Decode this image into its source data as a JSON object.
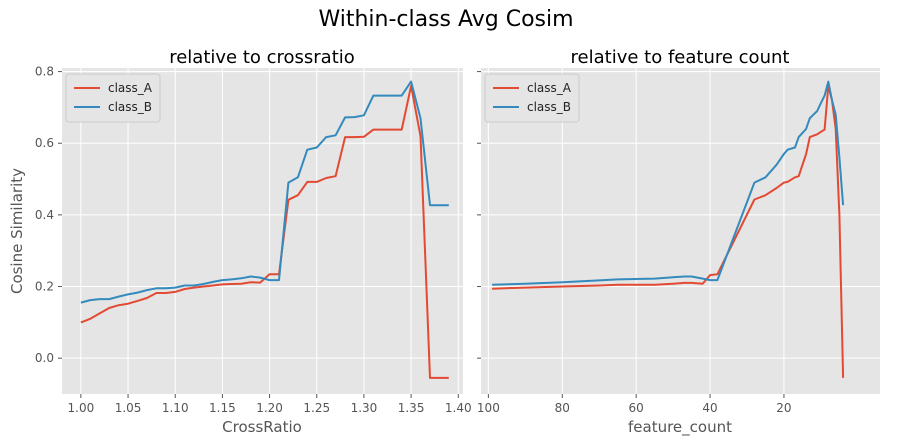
{
  "title": "Within-class Avg Cosim",
  "colors": {
    "class_A": "#E24A33",
    "class_B": "#348ABD",
    "panel_bg": "#E5E5E5",
    "grid": "#FFFFFF"
  },
  "chart_data": [
    {
      "type": "line",
      "title": "relative to crossratio",
      "xlabel": "CrossRatio",
      "ylabel": "Cosine Similarity",
      "xlim": [
        0.98,
        1.405
      ],
      "ylim": [
        -0.1,
        0.81
      ],
      "xticks": [
        "1.00",
        "1.05",
        "1.10",
        "1.15",
        "1.20",
        "1.25",
        "1.30",
        "1.35",
        "1.40"
      ],
      "yticks": [
        "0.0",
        "0.2",
        "0.4",
        "0.6",
        "0.8"
      ],
      "grid": true,
      "legend": "upper-left",
      "series": [
        {
          "name": "class_A",
          "x": [
            1.0,
            1.01,
            1.02,
            1.03,
            1.04,
            1.05,
            1.06,
            1.07,
            1.08,
            1.09,
            1.1,
            1.11,
            1.12,
            1.13,
            1.14,
            1.15,
            1.16,
            1.17,
            1.18,
            1.19,
            1.2,
            1.21,
            1.22,
            1.23,
            1.24,
            1.25,
            1.26,
            1.27,
            1.28,
            1.29,
            1.3,
            1.31,
            1.32,
            1.33,
            1.34,
            1.35,
            1.36,
            1.37,
            1.38,
            1.39
          ],
          "y": [
            0.1,
            0.11,
            0.125,
            0.14,
            0.148,
            0.152,
            0.16,
            0.168,
            0.182,
            0.182,
            0.185,
            0.193,
            0.197,
            0.2,
            0.203,
            0.206,
            0.207,
            0.208,
            0.212,
            0.211,
            0.234,
            0.234,
            0.442,
            0.455,
            0.492,
            0.492,
            0.503,
            0.508,
            0.617,
            0.617,
            0.618,
            0.638,
            0.638,
            0.638,
            0.638,
            0.76,
            0.62,
            -0.055,
            -0.055,
            -0.055
          ]
        },
        {
          "name": "class_B",
          "x": [
            1.0,
            1.01,
            1.02,
            1.03,
            1.04,
            1.05,
            1.06,
            1.07,
            1.08,
            1.09,
            1.1,
            1.11,
            1.12,
            1.13,
            1.14,
            1.15,
            1.16,
            1.17,
            1.18,
            1.19,
            1.2,
            1.21,
            1.22,
            1.23,
            1.24,
            1.25,
            1.26,
            1.27,
            1.28,
            1.29,
            1.3,
            1.31,
            1.32,
            1.33,
            1.34,
            1.35,
            1.36,
            1.37,
            1.38,
            1.39
          ],
          "y": [
            0.155,
            0.162,
            0.165,
            0.165,
            0.172,
            0.178,
            0.183,
            0.19,
            0.195,
            0.195,
            0.197,
            0.203,
            0.203,
            0.207,
            0.213,
            0.218,
            0.22,
            0.223,
            0.228,
            0.225,
            0.218,
            0.218,
            0.49,
            0.505,
            0.582,
            0.588,
            0.617,
            0.622,
            0.672,
            0.673,
            0.678,
            0.733,
            0.733,
            0.733,
            0.733,
            0.772,
            0.67,
            0.427,
            0.427,
            0.427
          ]
        }
      ]
    },
    {
      "type": "line",
      "title": "relative to feature count",
      "xlabel": "feature_count",
      "ylabel": "",
      "xlim": [
        102,
        -6
      ],
      "ylim": [
        -0.1,
        0.81
      ],
      "xticks": [
        "100",
        "80",
        "60",
        "40",
        "20"
      ],
      "yticks": [
        "0.0",
        "0.2",
        "0.4",
        "0.6",
        "0.8"
      ],
      "grid": true,
      "legend": "upper-left",
      "series": [
        {
          "name": "class_A",
          "x": [
            99,
            90,
            80,
            70,
            65,
            55,
            50,
            47,
            45,
            42,
            40,
            38,
            28,
            25,
            22,
            20,
            19,
            17,
            16,
            14,
            13,
            11,
            10,
            9,
            8,
            7,
            6,
            5,
            4
          ],
          "y": [
            0.194,
            0.197,
            0.2,
            0.203,
            0.205,
            0.205,
            0.208,
            0.21,
            0.21,
            0.208,
            0.232,
            0.234,
            0.443,
            0.455,
            0.475,
            0.49,
            0.492,
            0.505,
            0.508,
            0.57,
            0.617,
            0.625,
            0.632,
            0.638,
            0.76,
            0.72,
            0.64,
            0.4,
            -0.055
          ]
        },
        {
          "name": "class_B",
          "x": [
            99,
            90,
            80,
            70,
            65,
            55,
            50,
            47,
            45,
            42,
            40,
            38,
            28,
            25,
            22,
            20,
            19,
            17,
            16,
            14,
            13,
            11,
            10,
            9,
            8,
            7,
            6,
            5,
            4
          ],
          "y": [
            0.205,
            0.208,
            0.212,
            0.217,
            0.22,
            0.222,
            0.226,
            0.228,
            0.228,
            0.222,
            0.218,
            0.218,
            0.49,
            0.505,
            0.54,
            0.57,
            0.582,
            0.588,
            0.617,
            0.64,
            0.67,
            0.69,
            0.712,
            0.733,
            0.772,
            0.72,
            0.68,
            0.56,
            0.427
          ]
        }
      ]
    }
  ]
}
